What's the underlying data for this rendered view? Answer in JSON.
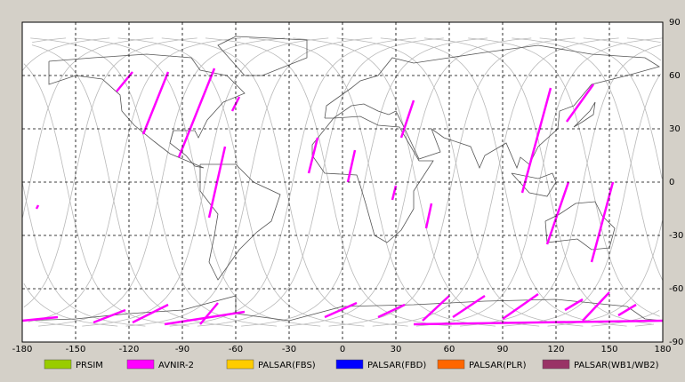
{
  "map": {
    "xticks": [
      -180,
      -150,
      -120,
      -90,
      -60,
      -30,
      0,
      30,
      60,
      90,
      120,
      150,
      180
    ],
    "yticks": [
      90,
      60,
      30,
      0,
      -30,
      -60,
      -90
    ],
    "xlim": [
      -180,
      180
    ],
    "ylim": [
      -90,
      90
    ],
    "legend": [
      {
        "name": "PRSIM",
        "color": "#99cc00"
      },
      {
        "name": "AVNIR-2",
        "color": "#ff00ff"
      },
      {
        "name": "PALSAR(FBS)",
        "color": "#ffcc00"
      },
      {
        "name": "PALSAR(FBD)",
        "color": "#0000ff"
      },
      {
        "name": "PALSAR(PLR)",
        "color": "#ff6600"
      },
      {
        "name": "PALSAR(WB1/WB2)",
        "color": "#993366"
      }
    ]
  }
}
